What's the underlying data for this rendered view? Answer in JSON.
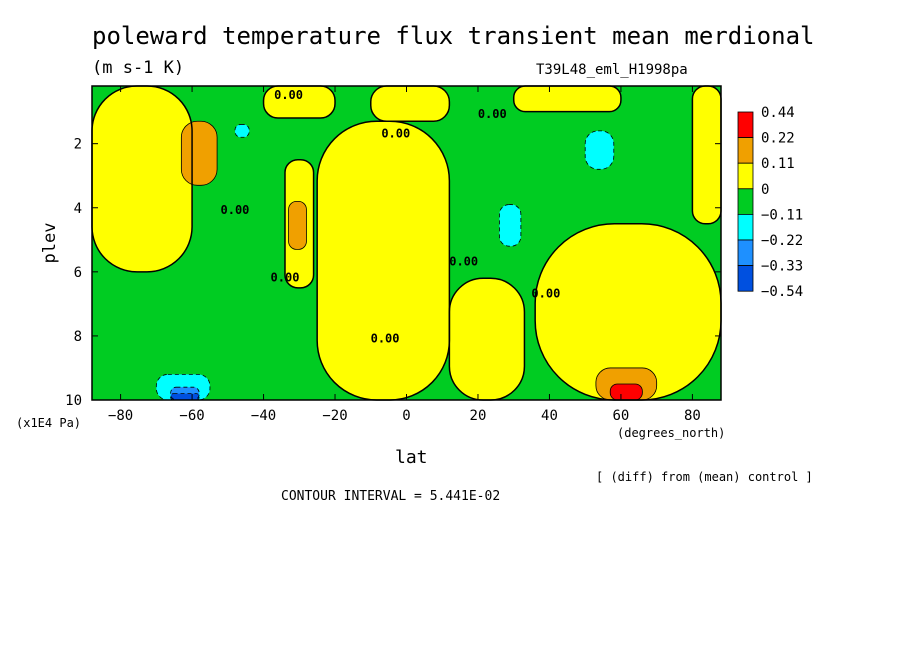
{
  "header": {
    "title": "poleward temperature flux transient mean merdional",
    "units": "(m s-1 K)",
    "run_id": "T39L48_eml_H1998pa"
  },
  "footer": {
    "contour_interval": "CONTOUR INTERVAL = 5.441E-02",
    "note": "[ (diff) from (mean) control ]"
  },
  "chart_data": {
    "type": "heatmap",
    "title": "poleward temperature flux transient mean merdional",
    "subtitle": "(m s-1 K)",
    "xlabel": "lat",
    "xunit": "(degrees_north)",
    "ylabel": "plev",
    "yunit": "(x1E4 Pa)",
    "xlim": [
      -88,
      88
    ],
    "ylim": [
      10,
      0.2
    ],
    "xticks": [
      -80,
      -60,
      -40,
      -20,
      0,
      20,
      40,
      60,
      80
    ],
    "xtick_labels": [
      "−80",
      "−60",
      "−40",
      "−20",
      "0",
      "20",
      "40",
      "60",
      "80"
    ],
    "yticks": [
      2,
      4,
      6,
      8,
      10
    ],
    "ytick_labels": [
      "2",
      "4",
      "6",
      "8",
      "10"
    ],
    "contour_labels": [
      {
        "text": "0.00",
        "lat": -33,
        "plev": 0.6
      },
      {
        "text": "0.00",
        "lat": -3,
        "plev": 1.8
      },
      {
        "text": "0.00",
        "lat": 24,
        "plev": 1.2
      },
      {
        "text": "0.00",
        "lat": -48,
        "plev": 4.2
      },
      {
        "text": "0.00",
        "lat": -34,
        "plev": 6.3
      },
      {
        "text": "0.00",
        "lat": 16,
        "plev": 5.8
      },
      {
        "text": "0.00",
        "lat": 39,
        "plev": 6.8
      },
      {
        "text": "0.00",
        "lat": -6,
        "plev": 8.2
      }
    ],
    "levels": [
      -0.54,
      -0.33,
      -0.22,
      -0.11,
      0,
      0.11,
      0.22,
      0.44
    ],
    "legend": {
      "placement": "right",
      "labels": [
        "0.44",
        "0.22",
        "0.11",
        "0",
        "−0.11",
        "−0.22",
        "−0.33",
        "−0.54"
      ],
      "colors": [
        "#ff0000",
        "#f0a000",
        "#ffff00",
        "#00cc22",
        "#00ffff",
        "#1e90ff",
        "#0050e0"
      ]
    },
    "colors": {
      "strong_positive": "#ff0000",
      "positive_med": "#f0a000",
      "positive": "#ffff00",
      "near_zero_neg": "#00cc22",
      "negative": "#00ffff",
      "negative_med": "#1e90ff",
      "strong_negative": "#0050e0"
    },
    "bands": [
      {
        "level": "positive",
        "lat_min": -88,
        "lat_max": -60,
        "plev_min": 0.2,
        "plev_max": 6.0
      },
      {
        "level": "positive",
        "lat_min": -40,
        "lat_max": -20,
        "plev_min": 0.2,
        "plev_max": 1.2
      },
      {
        "level": "positive",
        "lat_min": -34,
        "lat_max": -26,
        "plev_min": 2.5,
        "plev_max": 6.5
      },
      {
        "level": "positive",
        "lat_min": -25,
        "lat_max": 12,
        "plev_min": 1.3,
        "plev_max": 10
      },
      {
        "level": "positive",
        "lat_min": 12,
        "lat_max": 33,
        "plev_min": 6.2,
        "plev_max": 10
      },
      {
        "level": "positive",
        "lat_min": 36,
        "lat_max": 88,
        "plev_min": 4.5,
        "plev_max": 10
      },
      {
        "level": "positive",
        "lat_min": 80,
        "lat_max": 88,
        "plev_min": 0.2,
        "plev_max": 4.5
      },
      {
        "level": "positive",
        "lat_min": 30,
        "lat_max": 60,
        "plev_min": 0.2,
        "plev_max": 1.0
      },
      {
        "level": "positive",
        "lat_min": -10,
        "lat_max": 12,
        "plev_min": 0.2,
        "plev_max": 1.3
      },
      {
        "level": "positive_med",
        "lat_min": -63,
        "lat_max": -53,
        "plev_min": 1.3,
        "plev_max": 3.3
      },
      {
        "level": "positive_med",
        "lat_min": -33,
        "lat_max": -28,
        "plev_min": 3.8,
        "plev_max": 5.3
      },
      {
        "level": "positive_med",
        "lat_min": 53,
        "lat_max": 70,
        "plev_min": 9.0,
        "plev_max": 10
      },
      {
        "level": "strong_positive",
        "lat_min": 57,
        "lat_max": 66,
        "plev_min": 9.5,
        "plev_max": 10
      },
      {
        "level": "negative",
        "lat_min": 26,
        "lat_max": 32,
        "plev_min": 3.9,
        "plev_max": 5.2
      },
      {
        "level": "negative",
        "lat_min": 50,
        "lat_max": 58,
        "plev_min": 1.6,
        "plev_max": 2.8
      },
      {
        "level": "negative",
        "lat_min": -70,
        "lat_max": -55,
        "plev_min": 9.2,
        "plev_max": 10
      },
      {
        "level": "negative",
        "lat_min": -48,
        "lat_max": -44,
        "plev_min": 1.4,
        "plev_max": 1.8
      },
      {
        "level": "negative_med",
        "lat_min": -66,
        "lat_max": -58,
        "plev_min": 9.6,
        "plev_max": 10
      },
      {
        "level": "strong_negative",
        "lat_min": -66,
        "lat_max": -58,
        "plev_min": 9.8,
        "plev_max": 10
      }
    ]
  }
}
